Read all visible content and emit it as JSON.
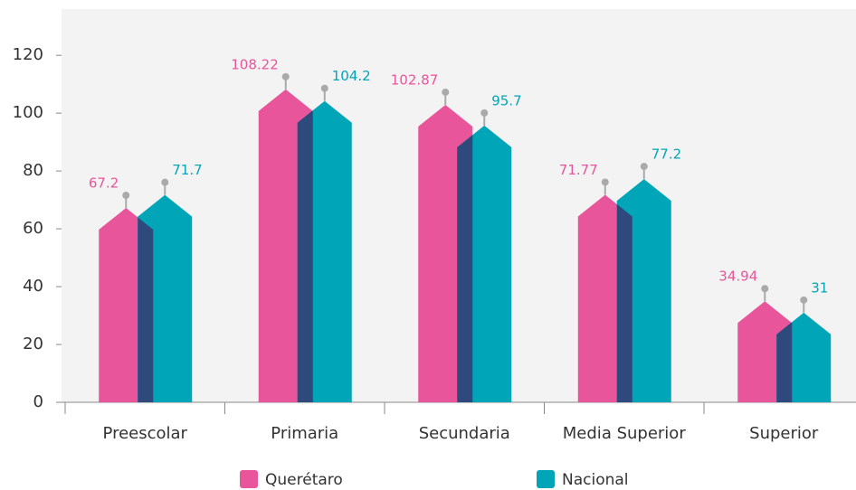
{
  "chart_data": {
    "type": "bar",
    "categories": [
      "Preescolar",
      "Primaria",
      "Secundaria",
      "Media Superior",
      "Superior"
    ],
    "series": [
      {
        "name": "Querétaro",
        "color": "#e8559a",
        "values": [
          67.2,
          108.22,
          102.87,
          71.77,
          34.94
        ]
      },
      {
        "name": "Nacional",
        "color": "#00a5b8",
        "values": [
          71.7,
          104.2,
          95.7,
          77.2,
          31
        ]
      }
    ],
    "overlap_color": "#2e4a7d",
    "ylim": [
      0,
      136
    ],
    "yticks": [
      0,
      20,
      40,
      60,
      80,
      100,
      120
    ],
    "legend": "bottom"
  }
}
